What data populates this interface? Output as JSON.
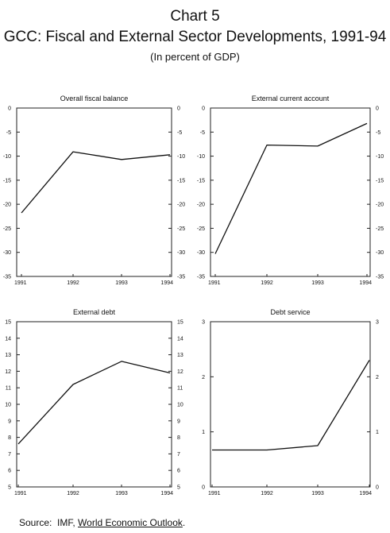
{
  "header": {
    "chart_label": "Chart 5",
    "title": "GCC: Fiscal and External Sector Developments, 1991-94",
    "subtitle": "(In percent of GDP)"
  },
  "footer": {
    "source_label": "Source:",
    "source_org": "IMF,",
    "source_publication": "World Economic Outlook",
    "source_end": "."
  },
  "chart_data": [
    {
      "type": "line",
      "title": "Overall fiscal balance",
      "x": [
        "1991",
        "1992",
        "1993",
        "1994"
      ],
      "series": [
        {
          "values": [
            -21.8,
            -9.1,
            -10.7,
            -9.7
          ]
        }
      ],
      "ylim": [
        -35,
        0
      ],
      "yticks": [
        "0",
        "-5",
        "-10",
        "-15",
        "-20",
        "-25",
        "-30",
        "-35"
      ],
      "grid": false
    },
    {
      "type": "line",
      "title": "External current account",
      "x": [
        "1991",
        "1992",
        "1993",
        "1994"
      ],
      "series": [
        {
          "values": [
            -30.3,
            -7.7,
            -7.9,
            -3.2
          ]
        }
      ],
      "ylim": [
        -35,
        0
      ],
      "yticks": [
        "0",
        "-5",
        "-10",
        "-15",
        "-20",
        "-25",
        "-30",
        "-35"
      ],
      "grid": false
    },
    {
      "type": "line",
      "title": "External debt",
      "x": [
        "1991",
        "1992",
        "1993",
        "1994"
      ],
      "series": [
        {
          "values": [
            7.6,
            11.2,
            12.6,
            11.9
          ]
        }
      ],
      "ylim": [
        5,
        15
      ],
      "yticks": [
        "15",
        "14",
        "13",
        "12",
        "11",
        "10",
        "9",
        "8",
        "7",
        "6",
        "5"
      ],
      "grid": false
    },
    {
      "type": "line",
      "title": "Debt service",
      "x": [
        "1991",
        "1992",
        "1993",
        "1994"
      ],
      "series": [
        {
          "values": [
            0.67,
            0.67,
            0.75,
            2.3
          ]
        }
      ],
      "ylim": [
        0,
        3
      ],
      "yticks": [
        "3",
        "2",
        "1",
        "0"
      ],
      "grid": false
    }
  ]
}
